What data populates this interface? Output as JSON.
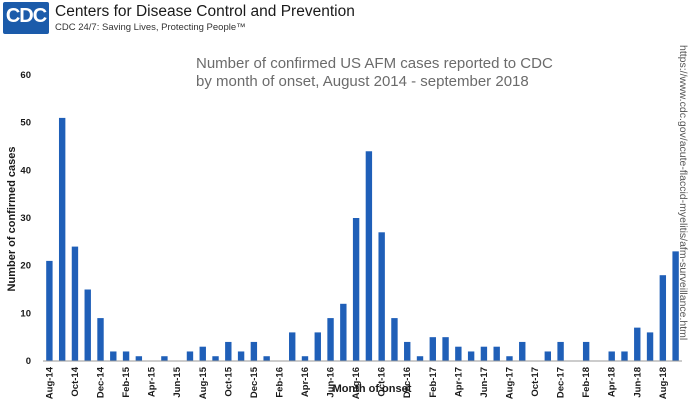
{
  "header": {
    "logo_text": "CDC",
    "org_name": "Centers for Disease Control and Prevention",
    "tagline": "CDC 24/7: Saving Lives, Protecting People™"
  },
  "side_url": "https://www.cdc.gov/acute-flaccid-myelitis/afm-surveillance.html",
  "colors": {
    "bar": "#1f5fb8",
    "axis": "#999999",
    "brand": "#1b5baa"
  },
  "chart_data": {
    "type": "bar",
    "title_lines": [
      "Number of confirmed US AFM cases reported to CDC",
      "by month of onset, August 2014 - september 2018"
    ],
    "xlabel": "Month of onset",
    "ylabel": "Number of confirmed cases",
    "ylim": [
      0,
      60
    ],
    "yticks": [
      0,
      10,
      20,
      30,
      40,
      50,
      60
    ],
    "grid": false,
    "legend": "none",
    "xtick_labels": [
      "Aug-14",
      "Oct-14",
      "Dec-14",
      "Feb-15",
      "Apr-15",
      "Jun-15",
      "Aug-15",
      "Oct-15",
      "Dec-15",
      "Feb-16",
      "Apr-16",
      "Jun-16",
      "Aug-16",
      "Oct-16",
      "Dec-16",
      "Feb-17",
      "Apr-17",
      "Jun-17",
      "Aug-17",
      "Oct-17",
      "Dec-17",
      "Feb-18",
      "Apr-18",
      "Jun-18",
      "Aug-18"
    ],
    "categories": [
      "Aug-14",
      "Sep-14",
      "Oct-14",
      "Nov-14",
      "Dec-14",
      "Jan-15",
      "Feb-15",
      "Mar-15",
      "Apr-15",
      "May-15",
      "Jun-15",
      "Jul-15",
      "Aug-15",
      "Sep-15",
      "Oct-15",
      "Nov-15",
      "Dec-15",
      "Jan-16",
      "Feb-16",
      "Mar-16",
      "Apr-16",
      "May-16",
      "Jun-16",
      "Jul-16",
      "Aug-16",
      "Sep-16",
      "Oct-16",
      "Nov-16",
      "Dec-16",
      "Jan-17",
      "Feb-17",
      "Mar-17",
      "Apr-17",
      "May-17",
      "Jun-17",
      "Jul-17",
      "Aug-17",
      "Sep-17",
      "Oct-17",
      "Nov-17",
      "Dec-17",
      "Jan-18",
      "Feb-18",
      "Mar-18",
      "Apr-18",
      "May-18",
      "Jun-18",
      "Jul-18",
      "Aug-18",
      "Sep-18"
    ],
    "values": [
      21,
      51,
      24,
      15,
      9,
      2,
      2,
      1,
      0,
      1,
      0,
      2,
      3,
      1,
      4,
      2,
      4,
      1,
      0,
      6,
      1,
      6,
      9,
      12,
      30,
      44,
      27,
      9,
      4,
      1,
      5,
      5,
      3,
      2,
      3,
      3,
      1,
      4,
      0,
      2,
      4,
      0,
      4,
      0,
      2,
      2,
      7,
      6,
      18,
      23
    ]
  }
}
